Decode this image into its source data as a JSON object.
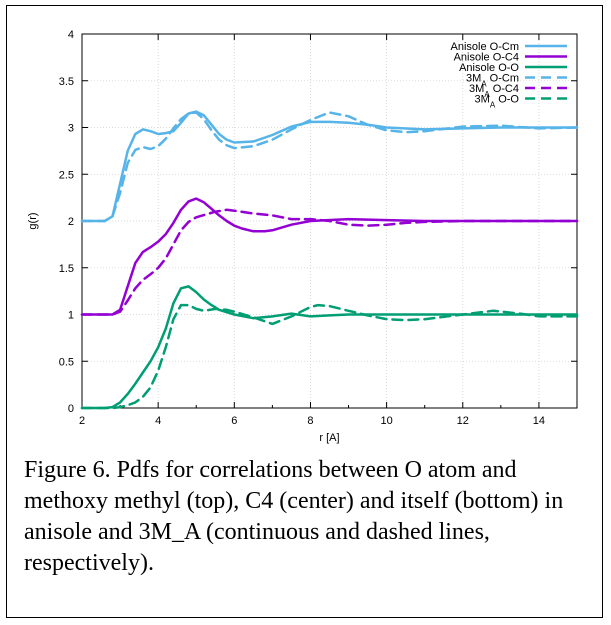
{
  "chart_data": {
    "type": "line",
    "title": "",
    "xlabel": "r [A]",
    "ylabel": "g(r)",
    "xlim": [
      2,
      15
    ],
    "ylim": [
      0,
      4
    ],
    "x_ticks": [
      2,
      4,
      6,
      8,
      10,
      12,
      14
    ],
    "y_ticks": [
      0,
      0.5,
      1,
      1.5,
      2,
      2.5,
      3,
      3.5,
      4
    ],
    "grid": true,
    "legend_position": "top-right",
    "series": [
      {
        "name": "Anisole O-Cm",
        "name_main": "Anisole O-Cm",
        "name_sub": "",
        "color": "#56b4e9",
        "dash": "solid",
        "points": [
          [
            2,
            2.0
          ],
          [
            2.6,
            2.0
          ],
          [
            2.8,
            2.05
          ],
          [
            3.0,
            2.4
          ],
          [
            3.2,
            2.75
          ],
          [
            3.4,
            2.93
          ],
          [
            3.6,
            2.98
          ],
          [
            3.8,
            2.96
          ],
          [
            4.0,
            2.93
          ],
          [
            4.2,
            2.94
          ],
          [
            4.4,
            2.96
          ],
          [
            4.6,
            3.05
          ],
          [
            4.8,
            3.15
          ],
          [
            5.0,
            3.17
          ],
          [
            5.2,
            3.13
          ],
          [
            5.4,
            3.03
          ],
          [
            5.6,
            2.93
          ],
          [
            5.8,
            2.87
          ],
          [
            6.0,
            2.84
          ],
          [
            6.5,
            2.85
          ],
          [
            7.0,
            2.92
          ],
          [
            7.5,
            3.01
          ],
          [
            8.0,
            3.06
          ],
          [
            8.5,
            3.06
          ],
          [
            9.0,
            3.05
          ],
          [
            9.5,
            3.03
          ],
          [
            10.0,
            3.0
          ],
          [
            11.0,
            2.98
          ],
          [
            12.0,
            2.99
          ],
          [
            13.0,
            3.0
          ],
          [
            14.0,
            3.0
          ],
          [
            15.0,
            3.0
          ]
        ]
      },
      {
        "name": "Anisole O-C4",
        "name_main": "Anisole O-C4",
        "name_sub": "",
        "color": "#9400d3",
        "dash": "solid",
        "points": [
          [
            2,
            1.0
          ],
          [
            2.8,
            1.0
          ],
          [
            3.0,
            1.05
          ],
          [
            3.2,
            1.3
          ],
          [
            3.4,
            1.55
          ],
          [
            3.6,
            1.67
          ],
          [
            3.8,
            1.72
          ],
          [
            4.0,
            1.78
          ],
          [
            4.2,
            1.86
          ],
          [
            4.4,
            1.98
          ],
          [
            4.6,
            2.12
          ],
          [
            4.8,
            2.21
          ],
          [
            5.0,
            2.24
          ],
          [
            5.2,
            2.2
          ],
          [
            5.4,
            2.13
          ],
          [
            5.6,
            2.06
          ],
          [
            5.8,
            2.0
          ],
          [
            6.0,
            1.95
          ],
          [
            6.2,
            1.92
          ],
          [
            6.5,
            1.89
          ],
          [
            6.8,
            1.89
          ],
          [
            7.0,
            1.9
          ],
          [
            7.5,
            1.96
          ],
          [
            8.0,
            2.0
          ],
          [
            9.0,
            2.02
          ],
          [
            10.0,
            2.01
          ],
          [
            11.0,
            2.0
          ],
          [
            12.0,
            2.0
          ],
          [
            15.0,
            2.0
          ]
        ]
      },
      {
        "name": "Anisole O-O",
        "name_main": "Anisole O-O",
        "name_sub": "",
        "color": "#009e73",
        "dash": "solid",
        "points": [
          [
            2,
            0.0
          ],
          [
            2.6,
            0.0
          ],
          [
            2.8,
            0.01
          ],
          [
            3.0,
            0.06
          ],
          [
            3.2,
            0.15
          ],
          [
            3.4,
            0.26
          ],
          [
            3.6,
            0.38
          ],
          [
            3.8,
            0.5
          ],
          [
            4.0,
            0.65
          ],
          [
            4.2,
            0.85
          ],
          [
            4.4,
            1.12
          ],
          [
            4.6,
            1.28
          ],
          [
            4.8,
            1.3
          ],
          [
            5.0,
            1.24
          ],
          [
            5.2,
            1.16
          ],
          [
            5.4,
            1.1
          ],
          [
            5.6,
            1.05
          ],
          [
            6.0,
            1.0
          ],
          [
            6.5,
            0.96
          ],
          [
            7.0,
            0.98
          ],
          [
            7.5,
            1.01
          ],
          [
            8.0,
            0.98
          ],
          [
            8.5,
            0.99
          ],
          [
            9.0,
            1.0
          ],
          [
            10.0,
            1.0
          ],
          [
            15.0,
            1.0
          ]
        ]
      },
      {
        "name": "3MA O-Cm",
        "name_main": "3M",
        "name_sub": "A",
        "name_suffix": " O-Cm",
        "color": "#56b4e9",
        "dash": "dashed",
        "points": [
          [
            2,
            2.0
          ],
          [
            2.6,
            2.0
          ],
          [
            2.8,
            2.05
          ],
          [
            3.0,
            2.3
          ],
          [
            3.2,
            2.62
          ],
          [
            3.4,
            2.76
          ],
          [
            3.6,
            2.79
          ],
          [
            3.8,
            2.77
          ],
          [
            4.0,
            2.8
          ],
          [
            4.2,
            2.88
          ],
          [
            4.4,
            2.99
          ],
          [
            4.6,
            3.09
          ],
          [
            4.8,
            3.15
          ],
          [
            5.0,
            3.16
          ],
          [
            5.2,
            3.09
          ],
          [
            5.4,
            2.97
          ],
          [
            5.6,
            2.87
          ],
          [
            5.8,
            2.81
          ],
          [
            6.0,
            2.78
          ],
          [
            6.5,
            2.8
          ],
          [
            7.0,
            2.87
          ],
          [
            7.5,
            2.98
          ],
          [
            8.0,
            3.08
          ],
          [
            8.5,
            3.16
          ],
          [
            9.0,
            3.12
          ],
          [
            9.5,
            3.03
          ],
          [
            10.0,
            2.97
          ],
          [
            10.5,
            2.95
          ],
          [
            11.0,
            2.96
          ],
          [
            12.0,
            3.01
          ],
          [
            13.0,
            3.02
          ],
          [
            14.0,
            2.99
          ],
          [
            15.0,
            3.0
          ]
        ]
      },
      {
        "name": "3MA O-C4",
        "name_main": "3M",
        "name_sub": "A",
        "name_suffix": " O-C4",
        "color": "#9400d3",
        "dash": "dashed",
        "points": [
          [
            2,
            1.0
          ],
          [
            2.8,
            1.0
          ],
          [
            3.0,
            1.03
          ],
          [
            3.2,
            1.15
          ],
          [
            3.4,
            1.28
          ],
          [
            3.6,
            1.37
          ],
          [
            3.8,
            1.43
          ],
          [
            4.0,
            1.5
          ],
          [
            4.2,
            1.6
          ],
          [
            4.4,
            1.75
          ],
          [
            4.6,
            1.9
          ],
          [
            4.8,
            1.99
          ],
          [
            5.0,
            2.04
          ],
          [
            5.5,
            2.1
          ],
          [
            5.8,
            2.12
          ],
          [
            6.0,
            2.11
          ],
          [
            6.5,
            2.08
          ],
          [
            7.0,
            2.06
          ],
          [
            7.5,
            2.02
          ],
          [
            8.0,
            2.02
          ],
          [
            8.5,
            2.0
          ],
          [
            9.0,
            1.96
          ],
          [
            9.5,
            1.95
          ],
          [
            10.0,
            1.96
          ],
          [
            10.5,
            1.98
          ],
          [
            11.0,
            1.99
          ],
          [
            12.0,
            2.0
          ],
          [
            15.0,
            2.0
          ]
        ]
      },
      {
        "name": "3MA O-O",
        "name_main": "3M",
        "name_sub": "A",
        "name_suffix": " O-O",
        "color": "#009e73",
        "dash": "dashed",
        "points": [
          [
            2,
            0.0
          ],
          [
            2.8,
            0.0
          ],
          [
            3.0,
            0.01
          ],
          [
            3.2,
            0.03
          ],
          [
            3.4,
            0.06
          ],
          [
            3.6,
            0.12
          ],
          [
            3.8,
            0.22
          ],
          [
            4.0,
            0.4
          ],
          [
            4.2,
            0.65
          ],
          [
            4.4,
            0.95
          ],
          [
            4.6,
            1.1
          ],
          [
            4.8,
            1.1
          ],
          [
            5.0,
            1.06
          ],
          [
            5.2,
            1.04
          ],
          [
            5.5,
            1.06
          ],
          [
            5.8,
            1.05
          ],
          [
            6.0,
            1.03
          ],
          [
            6.5,
            0.97
          ],
          [
            7.0,
            0.9
          ],
          [
            7.5,
            0.98
          ],
          [
            8.0,
            1.08
          ],
          [
            8.2,
            1.1
          ],
          [
            8.5,
            1.09
          ],
          [
            9.0,
            1.04
          ],
          [
            9.5,
            0.99
          ],
          [
            10.0,
            0.95
          ],
          [
            10.5,
            0.94
          ],
          [
            11.0,
            0.95
          ],
          [
            12.0,
            1.0
          ],
          [
            12.8,
            1.04
          ],
          [
            13.5,
            1.01
          ],
          [
            14.0,
            0.98
          ],
          [
            15.0,
            0.98
          ]
        ]
      }
    ]
  },
  "caption": "Figure 6. Pdfs for correlations between O atom and methoxy methyl (top), C4 (center) and itself (bottom) in anisole and 3M_A (continuous and dashed lines, respectively)."
}
